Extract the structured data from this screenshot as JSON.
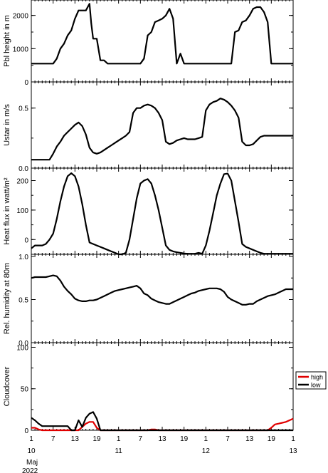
{
  "chart_data": [
    {
      "type": "line",
      "ylabel": "Pbl height in m",
      "ylim": [
        0,
        2400
      ],
      "yticks": [
        0,
        1000,
        2000
      ],
      "yminor": 500,
      "series": [
        {
          "color": "#000000",
          "x": [
            1,
            2,
            3,
            4,
            5,
            6,
            7,
            8,
            9,
            10,
            11,
            12,
            13,
            14,
            15,
            16,
            17,
            17.5,
            18,
            19,
            20,
            21,
            22,
            23,
            24,
            25,
            26,
            27,
            28,
            29,
            30,
            31,
            32,
            33,
            34,
            35,
            36,
            37,
            38,
            39,
            40,
            41,
            42,
            43,
            44,
            45,
            46,
            47,
            48,
            49,
            50,
            51,
            52,
            53,
            54,
            55,
            56,
            57,
            58,
            59,
            60,
            61,
            62,
            63,
            64,
            65,
            66,
            67,
            68,
            69,
            70,
            71,
            72,
            73
          ],
          "y": [
            550,
            550,
            550,
            550,
            550,
            550,
            550,
            700,
            1000,
            1150,
            1400,
            1550,
            1900,
            2150,
            2150,
            2150,
            2350,
            1750,
            1300,
            1300,
            650,
            650,
            550,
            550,
            550,
            550,
            550,
            550,
            550,
            550,
            550,
            550,
            700,
            1400,
            1500,
            1800,
            1850,
            1900,
            2000,
            2200,
            1900,
            550,
            850,
            550,
            550,
            550,
            550,
            550,
            550,
            550,
            550,
            550,
            550,
            550,
            550,
            550,
            550,
            1500,
            1550,
            1800,
            1850,
            2000,
            2200,
            2250,
            2250,
            2100,
            1800,
            550,
            550,
            550,
            550,
            550,
            550,
            550
          ]
        }
      ]
    },
    {
      "type": "line",
      "ylabel": "Ustar in m/s",
      "ylim": [
        0,
        0.7
      ],
      "yticks": [
        0.0,
        0.5
      ],
      "yminor": 0.25,
      "series": [
        {
          "color": "#000000",
          "x": [
            1,
            2,
            3,
            4,
            5,
            6,
            7,
            8,
            9,
            10,
            11,
            12,
            13,
            14,
            15,
            16,
            17,
            18,
            19,
            20,
            21,
            22,
            23,
            24,
            25,
            26,
            27,
            28,
            29,
            30,
            31,
            32,
            33,
            34,
            35,
            36,
            37,
            38,
            39,
            40,
            41,
            42,
            43,
            44,
            45,
            46,
            47,
            48,
            49,
            50,
            51,
            52,
            53,
            54,
            55,
            56,
            57,
            58,
            59,
            60,
            61,
            62,
            63,
            64,
            65,
            66,
            67,
            68,
            69,
            70,
            71,
            72,
            73
          ],
          "y": [
            0.07,
            0.07,
            0.07,
            0.07,
            0.07,
            0.07,
            0.12,
            0.18,
            0.22,
            0.27,
            0.3,
            0.33,
            0.36,
            0.38,
            0.35,
            0.28,
            0.17,
            0.13,
            0.12,
            0.13,
            0.15,
            0.17,
            0.19,
            0.21,
            0.23,
            0.25,
            0.27,
            0.3,
            0.46,
            0.5,
            0.5,
            0.52,
            0.53,
            0.52,
            0.5,
            0.46,
            0.4,
            0.22,
            0.2,
            0.21,
            0.23,
            0.24,
            0.25,
            0.24,
            0.24,
            0.24,
            0.25,
            0.26,
            0.48,
            0.53,
            0.55,
            0.56,
            0.58,
            0.57,
            0.55,
            0.52,
            0.48,
            0.42,
            0.22,
            0.19,
            0.19,
            0.2,
            0.23,
            0.26,
            0.27,
            0.27,
            0.27,
            0.27,
            0.27,
            0.27,
            0.27,
            0.27,
            0.27
          ]
        }
      ]
    },
    {
      "type": "line",
      "ylabel": "Heat flux in watt/m²",
      "ylim": [
        -50,
        235
      ],
      "yticks": [
        0,
        100,
        200
      ],
      "yminor": 50,
      "series": [
        {
          "color": "#000000",
          "x": [
            1,
            2,
            3,
            4,
            5,
            6,
            7,
            8,
            9,
            10,
            11,
            12,
            13,
            14,
            15,
            16,
            17,
            18,
            19,
            20,
            21,
            22,
            23,
            24,
            25,
            26,
            27,
            28,
            29,
            30,
            31,
            32,
            33,
            34,
            35,
            36,
            37,
            38,
            39,
            40,
            41,
            42,
            43,
            44,
            45,
            46,
            47,
            48,
            49,
            50,
            51,
            52,
            53,
            54,
            55,
            56,
            57,
            58,
            59,
            60,
            61,
            62,
            63,
            64,
            65,
            66,
            67,
            68,
            69,
            70,
            71,
            72,
            73
          ],
          "y": [
            -30,
            -20,
            -20,
            -20,
            -15,
            0,
            20,
            70,
            130,
            180,
            215,
            225,
            215,
            180,
            120,
            50,
            -10,
            -15,
            -20,
            -25,
            -30,
            -35,
            -40,
            -45,
            -50,
            -50,
            -45,
            0,
            70,
            140,
            190,
            200,
            205,
            190,
            150,
            100,
            40,
            -20,
            -35,
            -40,
            -43,
            -45,
            -47,
            -48,
            -48,
            -48,
            -45,
            -48,
            -20,
            30,
            90,
            150,
            190,
            222,
            224,
            200,
            130,
            60,
            -15,
            -25,
            -30,
            -35,
            -40,
            -45,
            -48,
            -48,
            -48,
            -48,
            -48,
            -48,
            -48,
            -48,
            -48
          ]
        }
      ]
    },
    {
      "type": "line",
      "ylabel": "Rel. humidity at 80m",
      "ylim": [
        0,
        1.0
      ],
      "yticks": [
        0.0,
        0.5,
        1.0
      ],
      "yminor": 0.25,
      "series": [
        {
          "color": "#000000",
          "x": [
            1,
            2,
            3,
            4,
            5,
            6,
            7,
            8,
            9,
            10,
            11,
            12,
            13,
            14,
            15,
            16,
            17,
            18,
            19,
            20,
            21,
            22,
            23,
            24,
            25,
            26,
            27,
            28,
            29,
            30,
            31,
            32,
            33,
            34,
            35,
            36,
            37,
            38,
            39,
            40,
            41,
            42,
            43,
            44,
            45,
            46,
            47,
            48,
            49,
            50,
            51,
            52,
            53,
            54,
            55,
            56,
            57,
            58,
            59,
            60,
            61,
            62,
            63,
            64,
            65,
            66,
            67,
            68,
            69,
            70,
            71,
            72,
            73
          ],
          "y": [
            0.75,
            0.76,
            0.76,
            0.76,
            0.76,
            0.77,
            0.78,
            0.77,
            0.72,
            0.65,
            0.6,
            0.56,
            0.51,
            0.49,
            0.48,
            0.48,
            0.49,
            0.49,
            0.5,
            0.52,
            0.54,
            0.56,
            0.58,
            0.6,
            0.61,
            0.62,
            0.63,
            0.64,
            0.65,
            0.66,
            0.63,
            0.57,
            0.55,
            0.51,
            0.49,
            0.47,
            0.46,
            0.45,
            0.45,
            0.47,
            0.49,
            0.51,
            0.53,
            0.55,
            0.57,
            0.58,
            0.6,
            0.61,
            0.62,
            0.63,
            0.63,
            0.63,
            0.62,
            0.59,
            0.53,
            0.5,
            0.48,
            0.46,
            0.44,
            0.44,
            0.45,
            0.45,
            0.48,
            0.5,
            0.52,
            0.54,
            0.55,
            0.56,
            0.58,
            0.6,
            0.62,
            0.62,
            0.62
          ]
        }
      ]
    },
    {
      "type": "line",
      "ylabel": "Cloudcover",
      "ylim": [
        0,
        103
      ],
      "yticks": [
        0,
        50,
        100
      ],
      "yminor": 25,
      "legend": {
        "position": "right",
        "entries": [
          "high",
          "low"
        ]
      },
      "series": [
        {
          "name": "high",
          "color": "#e00000",
          "x": [
            1,
            2,
            3,
            4,
            5,
            6,
            7,
            8,
            9,
            10,
            11,
            12,
            13,
            14,
            15,
            16,
            17,
            18,
            19,
            20,
            21,
            22,
            23,
            24,
            25,
            26,
            27,
            28,
            29,
            30,
            31,
            32,
            33,
            34,
            35,
            36,
            37,
            38,
            39,
            40,
            41,
            42,
            43,
            44,
            45,
            46,
            47,
            48,
            49,
            50,
            51,
            52,
            53,
            54,
            55,
            56,
            57,
            58,
            59,
            60,
            61,
            62,
            63,
            64,
            65,
            66,
            67,
            68,
            69,
            70,
            71,
            72,
            73
          ],
          "y": [
            3,
            3,
            1,
            0,
            0,
            0,
            0,
            0,
            0,
            0,
            0,
            0,
            0,
            0,
            4,
            8,
            10,
            10,
            3,
            0,
            0,
            0,
            0,
            0,
            0,
            0,
            0,
            0,
            0,
            0,
            0,
            0,
            0,
            1,
            1,
            0,
            0,
            0,
            0,
            0,
            0,
            0,
            0,
            0,
            0,
            0,
            0,
            0,
            0,
            0,
            0,
            0,
            0,
            0,
            0,
            0,
            0,
            0,
            0,
            0,
            0,
            0,
            0,
            0,
            0,
            0,
            3,
            7,
            8,
            9,
            10,
            12,
            14
          ]
        },
        {
          "name": "low",
          "color": "#000000",
          "x": [
            1,
            2,
            3,
            4,
            5,
            6,
            7,
            8,
            9,
            10,
            11,
            12,
            13,
            14,
            15,
            16,
            17,
            18,
            19,
            20,
            21,
            22,
            23,
            24,
            25,
            26,
            27,
            28,
            29,
            30,
            31,
            32,
            33,
            34,
            35,
            36,
            37,
            38,
            39,
            40,
            41,
            42,
            43,
            44,
            45,
            46,
            47,
            48,
            49,
            50,
            51,
            52,
            53,
            54,
            55,
            56,
            57,
            58,
            59,
            60,
            61,
            62,
            63,
            64,
            65,
            66,
            67,
            68,
            69,
            70,
            71,
            72,
            73
          ],
          "y": [
            15,
            12,
            8,
            5,
            5,
            5,
            5,
            5,
            5,
            5,
            5,
            0,
            0,
            12,
            4,
            15,
            20,
            22,
            14,
            0,
            0,
            0,
            0,
            0,
            0,
            0,
            0,
            0,
            0,
            0,
            0,
            0,
            0,
            0,
            0,
            0,
            0,
            0,
            0,
            0,
            0,
            0,
            0,
            0,
            0,
            0,
            0,
            0,
            0,
            0,
            0,
            0,
            0,
            0,
            0,
            0,
            0,
            0,
            0,
            0,
            0,
            0,
            0,
            0,
            0,
            0,
            0,
            0,
            0,
            0,
            0,
            0,
            0
          ]
        }
      ]
    }
  ],
  "x_axis": {
    "hour_ticks": [
      {
        "x": 1,
        "label": "1"
      },
      {
        "x": 7,
        "label": "7"
      },
      {
        "x": 13,
        "label": "13"
      },
      {
        "x": 19,
        "label": "19"
      },
      {
        "x": 25,
        "label": "1"
      },
      {
        "x": 31,
        "label": "7"
      },
      {
        "x": 37,
        "label": "13"
      },
      {
        "x": 43,
        "label": "19"
      },
      {
        "x": 49,
        "label": "1"
      },
      {
        "x": 55,
        "label": "7"
      },
      {
        "x": 61,
        "label": "13"
      },
      {
        "x": 67,
        "label": "19"
      },
      {
        "x": 73,
        "label": "1"
      },
      {
        "x": 73.05,
        "label": "13"
      }
    ],
    "day_labels": [
      {
        "x": 1,
        "label": "10"
      },
      {
        "x": 25,
        "label": "11"
      },
      {
        "x": 49,
        "label": "12"
      },
      {
        "x": 73,
        "label": "13"
      }
    ],
    "month_label": "Maj",
    "year_label": "2022",
    "xlim": [
      1,
      73
    ]
  }
}
